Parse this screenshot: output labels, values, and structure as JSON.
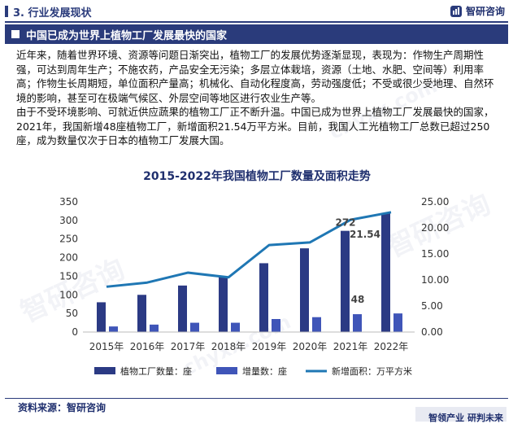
{
  "header": {
    "section_title": "3. 行业发展现状",
    "brand_name": "智研咨询"
  },
  "banner": {
    "title": "中国已成为世界上植物工厂发展最快的国家"
  },
  "body": {
    "paragraph1": "近年来，随着世界环境、资源等问题日渐突出，植物工厂的发展优势逐渐显现，表现为：作物生产周期性强，可达到周年生产；不施农药，产品安全无污染；多层立体栽培，资源（土地、水肥、空间等）利用率高；作物生长周期短，单位面积产量高；机械化、自动化程度高，劳动强度低；不受或很少受地理、自然环境的影响，甚至可在极端气候区、外层空间等地区进行农业生产等。",
    "paragraph2": "由于不受环境影响、可就近供应蔬果的植物工厂正不断升温。中国已成为世界上植物工厂发展最快的国家，2021年，我国新增48座植物工厂，新增面积21.54万平方米。目前，我国人工光植物工厂总数已超过250座，成为数量仅次于日本的植物工厂发展大国。"
  },
  "chart_data": {
    "type": "bar",
    "title": "2015-2022年我国植物工厂数量及面积走势",
    "categories": [
      "2015年",
      "2016年",
      "2017年",
      "2018年",
      "2019年",
      "2020年",
      "2021年",
      "2022年"
    ],
    "series": [
      {
        "name": "植物工厂数量：座",
        "type": "bar",
        "axis": "left",
        "color": "#2b3a84",
        "values": [
          80,
          100,
          125,
          150,
          185,
          225,
          272,
          320
        ]
      },
      {
        "name": "增量数：座",
        "type": "bar",
        "axis": "left",
        "color": "#3f55b8",
        "values": [
          15,
          20,
          25,
          25,
          35,
          40,
          48,
          50
        ]
      },
      {
        "name": "新增面积：万平方米",
        "type": "line",
        "axis": "right",
        "color": "#1f77b4",
        "values": [
          8.7,
          9.5,
          11.4,
          10.5,
          16.7,
          17.2,
          21.54,
          23.0
        ]
      }
    ],
    "data_labels": [
      {
        "series": 0,
        "index": 6,
        "text": "272"
      },
      {
        "series": 2,
        "index": 6,
        "text": "21.54"
      },
      {
        "series": 1,
        "index": 6,
        "text": "48"
      }
    ],
    "ylim_left": [
      0,
      350
    ],
    "yticks_left": [
      "0",
      "50",
      "100",
      "150",
      "200",
      "250",
      "300",
      "350"
    ],
    "ylim_right": [
      0,
      25
    ],
    "yticks_right": [
      "0.00",
      "5.00",
      "10.00",
      "15.00",
      "20.00",
      "25.00"
    ],
    "grid": false,
    "legend_position": "bottom"
  },
  "footer": {
    "source": "资料来源：智研咨询",
    "slogan": "智领产业  研判未来"
  },
  "watermark": {
    "text": "智研咨询",
    "subtext": "chyxx.com"
  }
}
